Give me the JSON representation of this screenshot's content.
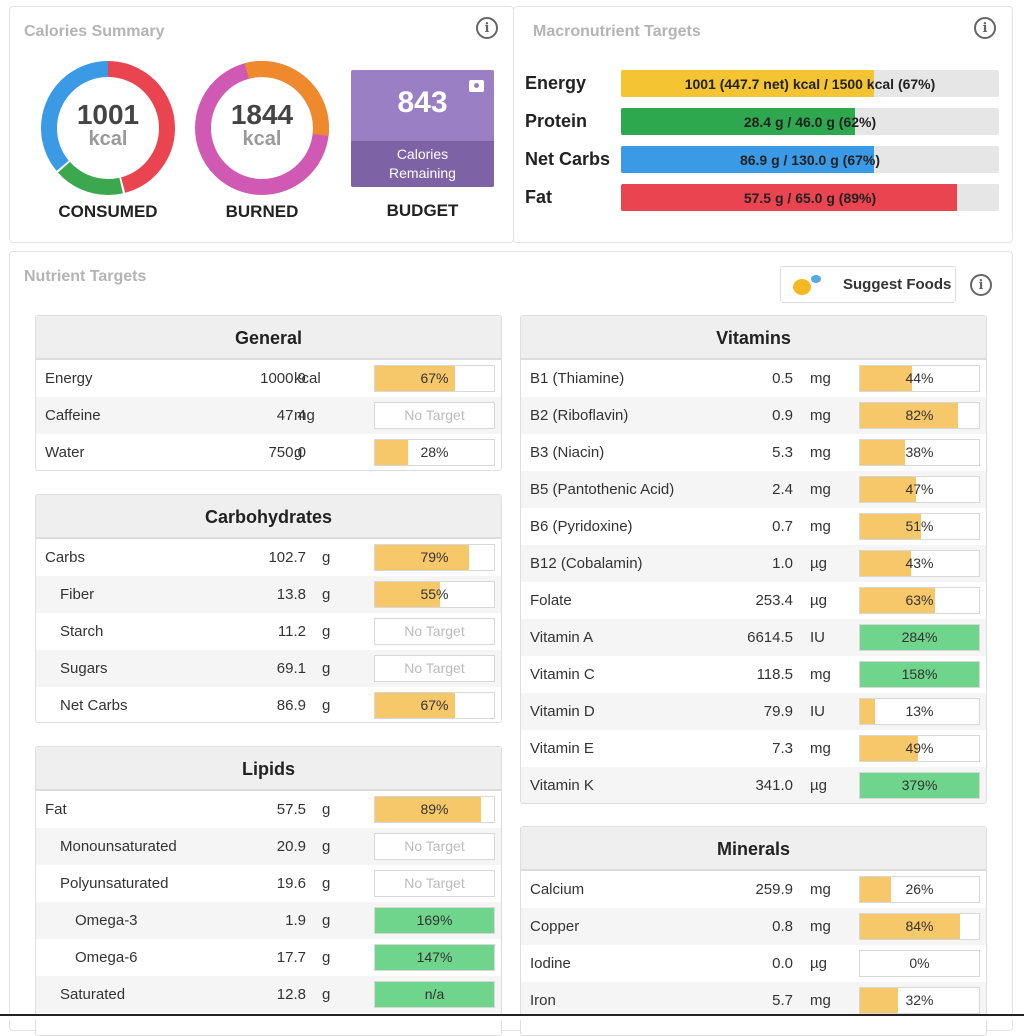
{
  "calories": {
    "title": "Calories Summary",
    "consumed": {
      "value": "1001",
      "unit": "kcal",
      "caption": "CONSUMED"
    },
    "burned": {
      "value": "1844",
      "unit": "kcal",
      "caption": "BURNED"
    },
    "budget": {
      "value": "843",
      "line1": "Calories",
      "line2": "Remaining",
      "caption": "BUDGET"
    }
  },
  "macros": {
    "title": "Macronutrient Targets",
    "items": [
      {
        "label": "Energy",
        "text": "1001 (447.7 net) kcal / 1500 kcal (67%)",
        "percent": 67,
        "color": "#f5c432"
      },
      {
        "label": "Protein",
        "text": "28.4 g / 46.0 g (62%)",
        "percent": 62,
        "color": "#2ea84f"
      },
      {
        "label": "Net Carbs",
        "text": "86.9 g / 130.0 g (67%)",
        "percent": 67,
        "color": "#3a9ae6"
      },
      {
        "label": "Fat",
        "text": "57.5 g / 65.0 g (89%)",
        "percent": 89,
        "color": "#ea4450"
      }
    ]
  },
  "nutrients": {
    "title": "Nutrient Targets",
    "suggest_label": "Suggest Foods",
    "general": {
      "title": "General",
      "rows": [
        {
          "name": "Energy",
          "amount": "1000.9",
          "unit": "kcal",
          "pct": "67%",
          "fill": 67,
          "kind": "y"
        },
        {
          "name": "Caffeine",
          "amount": "47.4",
          "unit": "mg",
          "pct": "No Target",
          "fill": 0,
          "kind": "n"
        },
        {
          "name": "Water",
          "amount": "750.0",
          "unit": "g",
          "pct": "28%",
          "fill": 28,
          "kind": "y"
        }
      ]
    },
    "carbohydrates": {
      "title": "Carbohydrates",
      "rows": [
        {
          "name": "Carbs",
          "amount": "102.7",
          "unit": "g",
          "pct": "79%",
          "fill": 79,
          "kind": "y",
          "indent": 0
        },
        {
          "name": "Fiber",
          "amount": "13.8",
          "unit": "g",
          "pct": "55%",
          "fill": 55,
          "kind": "y",
          "indent": 1
        },
        {
          "name": "Starch",
          "amount": "11.2",
          "unit": "g",
          "pct": "No Target",
          "fill": 0,
          "kind": "n",
          "indent": 1
        },
        {
          "name": "Sugars",
          "amount": "69.1",
          "unit": "g",
          "pct": "No Target",
          "fill": 0,
          "kind": "n",
          "indent": 1
        },
        {
          "name": "Net Carbs",
          "amount": "86.9",
          "unit": "g",
          "pct": "67%",
          "fill": 67,
          "kind": "y",
          "indent": 1
        }
      ]
    },
    "lipids": {
      "title": "Lipids",
      "rows": [
        {
          "name": "Fat",
          "amount": "57.5",
          "unit": "g",
          "pct": "89%",
          "fill": 89,
          "kind": "y",
          "indent": 0
        },
        {
          "name": "Monounsaturated",
          "amount": "20.9",
          "unit": "g",
          "pct": "No Target",
          "fill": 0,
          "kind": "n",
          "indent": 1
        },
        {
          "name": "Polyunsaturated",
          "amount": "19.6",
          "unit": "g",
          "pct": "No Target",
          "fill": 0,
          "kind": "n",
          "indent": 1
        },
        {
          "name": "Omega-3",
          "amount": "1.9",
          "unit": "g",
          "pct": "169%",
          "fill": 100,
          "kind": "g",
          "indent": 2
        },
        {
          "name": "Omega-6",
          "amount": "17.7",
          "unit": "g",
          "pct": "147%",
          "fill": 100,
          "kind": "g",
          "indent": 2
        },
        {
          "name": "Saturated",
          "amount": "12.8",
          "unit": "g",
          "pct": "n/a",
          "fill": 100,
          "kind": "g",
          "indent": 1
        }
      ]
    },
    "vitamins": {
      "title": "Vitamins",
      "rows": [
        {
          "name": "B1 (Thiamine)",
          "amount": "0.5",
          "unit": "mg",
          "pct": "44%",
          "fill": 44,
          "kind": "y"
        },
        {
          "name": "B2 (Riboflavin)",
          "amount": "0.9",
          "unit": "mg",
          "pct": "82%",
          "fill": 82,
          "kind": "y"
        },
        {
          "name": "B3 (Niacin)",
          "amount": "5.3",
          "unit": "mg",
          "pct": "38%",
          "fill": 38,
          "kind": "y"
        },
        {
          "name": "B5 (Pantothenic Acid)",
          "amount": "2.4",
          "unit": "mg",
          "pct": "47%",
          "fill": 47,
          "kind": "y"
        },
        {
          "name": "B6 (Pyridoxine)",
          "amount": "0.7",
          "unit": "mg",
          "pct": "51%",
          "fill": 51,
          "kind": "y"
        },
        {
          "name": "B12 (Cobalamin)",
          "amount": "1.0",
          "unit": "µg",
          "pct": "43%",
          "fill": 43,
          "kind": "y"
        },
        {
          "name": "Folate",
          "amount": "253.4",
          "unit": "µg",
          "pct": "63%",
          "fill": 63,
          "kind": "y"
        },
        {
          "name": "Vitamin A",
          "amount": "6614.5",
          "unit": "IU",
          "pct": "284%",
          "fill": 100,
          "kind": "g"
        },
        {
          "name": "Vitamin C",
          "amount": "118.5",
          "unit": "mg",
          "pct": "158%",
          "fill": 100,
          "kind": "g"
        },
        {
          "name": "Vitamin D",
          "amount": "79.9",
          "unit": "IU",
          "pct": "13%",
          "fill": 13,
          "kind": "y"
        },
        {
          "name": "Vitamin E",
          "amount": "7.3",
          "unit": "mg",
          "pct": "49%",
          "fill": 49,
          "kind": "y"
        },
        {
          "name": "Vitamin K",
          "amount": "341.0",
          "unit": "µg",
          "pct": "379%",
          "fill": 100,
          "kind": "g"
        }
      ]
    },
    "minerals": {
      "title": "Minerals",
      "rows": [
        {
          "name": "Calcium",
          "amount": "259.9",
          "unit": "mg",
          "pct": "26%",
          "fill": 26,
          "kind": "y"
        },
        {
          "name": "Copper",
          "amount": "0.8",
          "unit": "mg",
          "pct": "84%",
          "fill": 84,
          "kind": "y"
        },
        {
          "name": "Iodine",
          "amount": "0.0",
          "unit": "µg",
          "pct": "0%",
          "fill": 0,
          "kind": "y"
        },
        {
          "name": "Iron",
          "amount": "5.7",
          "unit": "mg",
          "pct": "32%",
          "fill": 32,
          "kind": "y"
        }
      ]
    }
  },
  "colors": {
    "yellow": "#f7c86a",
    "green": "#6fd48c",
    "purple": "#9b7fc5",
    "purple_dark": "#7d62a6"
  }
}
